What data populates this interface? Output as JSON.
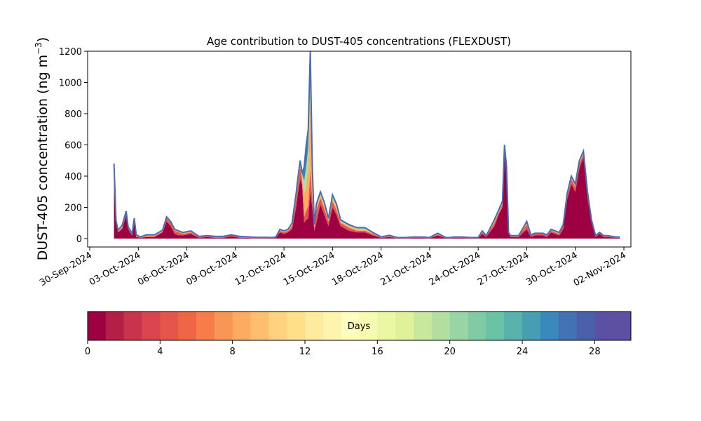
{
  "chart_data": {
    "type": "area",
    "title": "Age contribution to DUST-405 concentrations (FLEXDUST)",
    "ylabel": "DUST-405 concentration (ng m",
    "ylabel_sup": "−3",
    "ylabel_close": ")",
    "xlabel": "",
    "ylim": [
      -50,
      1200
    ],
    "yticks": [
      0,
      200,
      400,
      600,
      800,
      1000,
      1200
    ],
    "xlim": [
      "2024-09-30T00:00",
      "2024-11-02T00:00"
    ],
    "xticks": [
      "30-Sep-2024",
      "03-Oct-2024",
      "06-Oct-2024",
      "09-Oct-2024",
      "12-Oct-2024",
      "15-Oct-2024",
      "18-Oct-2024",
      "21-Oct-2024",
      "24-Oct-2024",
      "27-Oct-2024",
      "30-Oct-2024",
      "02-Nov-2024"
    ],
    "grid": false,
    "stack_palette": "Spectral",
    "x": [
      "2024-10-01T12:00",
      "2024-10-01T15:00",
      "2024-10-01T18:00",
      "2024-10-02T00:00",
      "2024-10-02T06:00",
      "2024-10-02T09:00",
      "2024-10-02T15:00",
      "2024-10-02T18:00",
      "2024-10-02T21:00",
      "2024-10-03T03:00",
      "2024-10-03T12:00",
      "2024-10-04T00:00",
      "2024-10-04T12:00",
      "2024-10-04T18:00",
      "2024-10-05T00:00",
      "2024-10-05T06:00",
      "2024-10-05T12:00",
      "2024-10-05T18:00",
      "2024-10-06T06:00",
      "2024-10-06T18:00",
      "2024-10-07T06:00",
      "2024-10-07T18:00",
      "2024-10-08T06:00",
      "2024-10-08T18:00",
      "2024-10-09T06:00",
      "2024-10-09T18:00",
      "2024-10-10T06:00",
      "2024-10-10T18:00",
      "2024-10-11T06:00",
      "2024-10-11T12:00",
      "2024-10-11T18:00",
      "2024-10-12T00:00",
      "2024-10-12T06:00",
      "2024-10-12T12:00",
      "2024-10-12T18:00",
      "2024-10-12T21:00",
      "2024-10-13T00:00",
      "2024-10-13T03:00",
      "2024-10-13T06:00",
      "2024-10-13T09:00",
      "2024-10-13T12:00",
      "2024-10-13T15:00",
      "2024-10-13T18:00",
      "2024-10-13T21:00",
      "2024-10-14T00:00",
      "2024-10-14T06:00",
      "2024-10-14T12:00",
      "2024-10-14T18:00",
      "2024-10-15T00:00",
      "2024-10-15T06:00",
      "2024-10-15T12:00",
      "2024-10-16T00:00",
      "2024-10-16T12:00",
      "2024-10-17T00:00",
      "2024-10-17T12:00",
      "2024-10-18T00:00",
      "2024-10-18T12:00",
      "2024-10-19T00:00",
      "2024-10-19T12:00",
      "2024-10-20T00:00",
      "2024-10-20T12:00",
      "2024-10-21T00:00",
      "2024-10-21T12:00",
      "2024-10-22T00:00",
      "2024-10-22T06:00",
      "2024-10-22T12:00",
      "2024-10-23T00:00",
      "2024-10-23T12:00",
      "2024-10-24T00:00",
      "2024-10-24T06:00",
      "2024-10-24T12:00",
      "2024-10-25T00:00",
      "2024-10-25T06:00",
      "2024-10-25T12:00",
      "2024-10-25T15:00",
      "2024-10-25T18:00",
      "2024-10-25T21:00",
      "2024-10-26T00:00",
      "2024-10-26T06:00",
      "2024-10-26T12:00",
      "2024-10-27T00:00",
      "2024-10-27T06:00",
      "2024-10-27T12:00",
      "2024-10-28T00:00",
      "2024-10-28T06:00",
      "2024-10-28T12:00",
      "2024-10-29T00:00",
      "2024-10-29T06:00",
      "2024-10-29T12:00",
      "2024-10-29T18:00",
      "2024-10-30T00:00",
      "2024-10-30T06:00",
      "2024-10-30T12:00",
      "2024-10-30T18:00",
      "2024-10-31T00:00",
      "2024-10-31T06:00",
      "2024-10-31T12:00",
      "2024-10-31T18:00",
      "2024-11-01T00:00",
      "2024-11-01T12:00",
      "2024-11-01T18:00"
    ],
    "series": [
      {
        "values": [
          450,
          100,
          40,
          60,
          150,
          60,
          20,
          100,
          10,
          5,
          10,
          10,
          40,
          110,
          80,
          30,
          20,
          20,
          30,
          5,
          10,
          5,
          5,
          15,
          5,
          5,
          2,
          2,
          2,
          5,
          40,
          30,
          40,
          60,
          200,
          300,
          380,
          340,
          100,
          120,
          130,
          300,
          200,
          50,
          100,
          220,
          150,
          80,
          200,
          150,
          80,
          50,
          40,
          40,
          20,
          5,
          10,
          2,
          2,
          5,
          5,
          2,
          20,
          2,
          2,
          5,
          5,
          2,
          2,
          30,
          10,
          80,
          150,
          200,
          560,
          400,
          30,
          10,
          10,
          10,
          60,
          10,
          20,
          20,
          10,
          40,
          20,
          60,
          250,
          350,
          300,
          450,
          520,
          260,
          100,
          10,
          30,
          10,
          10,
          5,
          5
        ]
      },
      {
        "values": [
          10,
          5,
          5,
          10,
          10,
          5,
          5,
          10,
          5,
          2,
          5,
          5,
          5,
          20,
          20,
          20,
          20,
          10,
          10,
          5,
          5,
          5,
          5,
          5,
          5,
          2,
          2,
          2,
          2,
          2,
          10,
          10,
          10,
          20,
          50,
          60,
          80,
          40,
          40,
          60,
          80,
          150,
          60,
          20,
          80,
          40,
          40,
          30,
          40,
          30,
          20,
          20,
          10,
          10,
          10,
          2,
          5,
          2,
          2,
          2,
          2,
          2,
          5,
          2,
          2,
          2,
          2,
          2,
          2,
          10,
          5,
          20,
          10,
          20,
          20,
          40,
          5,
          5,
          5,
          5,
          30,
          10,
          10,
          10,
          10,
          10,
          10,
          20,
          20,
          30,
          30,
          30,
          20,
          20,
          10,
          5,
          5,
          5,
          5,
          2,
          2
        ]
      },
      {
        "values": [
          10,
          5,
          5,
          5,
          5,
          5,
          5,
          10,
          5,
          2,
          5,
          5,
          5,
          5,
          5,
          5,
          5,
          5,
          5,
          2,
          2,
          2,
          2,
          2,
          2,
          2,
          2,
          2,
          1,
          1,
          5,
          5,
          5,
          10,
          20,
          20,
          20,
          20,
          150,
          150,
          250,
          450,
          120,
          10,
          20,
          20,
          20,
          10,
          20,
          20,
          10,
          10,
          10,
          10,
          5,
          2,
          2,
          1,
          1,
          1,
          1,
          1,
          5,
          1,
          1,
          1,
          1,
          1,
          1,
          5,
          2,
          10,
          10,
          10,
          10,
          10,
          2,
          2,
          2,
          2,
          10,
          2,
          2,
          2,
          2,
          5,
          5,
          5,
          10,
          10,
          10,
          10,
          10,
          10,
          5,
          2,
          2,
          2,
          2,
          1,
          1
        ]
      },
      {
        "values": [
          5,
          2,
          2,
          5,
          5,
          2,
          2,
          5,
          2,
          1,
          2,
          2,
          2,
          2,
          2,
          2,
          2,
          2,
          2,
          1,
          1,
          1,
          1,
          1,
          1,
          1,
          1,
          1,
          1,
          1,
          2,
          2,
          2,
          5,
          10,
          10,
          10,
          10,
          80,
          130,
          120,
          150,
          40,
          5,
          10,
          10,
          10,
          5,
          10,
          10,
          5,
          5,
          5,
          5,
          2,
          1,
          2,
          1,
          1,
          1,
          1,
          1,
          2,
          1,
          1,
          1,
          1,
          1,
          1,
          2,
          1,
          5,
          5,
          5,
          5,
          5,
          1,
          1,
          1,
          1,
          5,
          1,
          1,
          1,
          1,
          2,
          2,
          2,
          5,
          5,
          5,
          5,
          5,
          5,
          2,
          1,
          1,
          1,
          1,
          1,
          1
        ]
      },
      {
        "values": [
          5,
          2,
          2,
          5,
          5,
          2,
          2,
          5,
          2,
          1,
          2,
          2,
          2,
          2,
          2,
          2,
          2,
          2,
          2,
          1,
          1,
          1,
          1,
          1,
          1,
          1,
          1,
          1,
          1,
          1,
          2,
          2,
          2,
          5,
          10,
          10,
          10,
          10,
          90,
          140,
          120,
          150,
          40,
          5,
          10,
          10,
          10,
          5,
          10,
          10,
          5,
          5,
          5,
          5,
          2,
          1,
          2,
          1,
          1,
          1,
          1,
          1,
          2,
          1,
          1,
          1,
          1,
          1,
          1,
          2,
          1,
          5,
          5,
          5,
          5,
          5,
          1,
          1,
          1,
          1,
          5,
          1,
          1,
          1,
          1,
          2,
          2,
          2,
          5,
          5,
          5,
          5,
          5,
          5,
          2,
          1,
          1,
          1,
          1,
          1,
          1
        ]
      }
    ],
    "colorbar": {
      "label": "Days",
      "ticks": [
        0,
        4,
        8,
        12,
        16,
        20,
        24,
        28
      ],
      "range": [
        0,
        30
      ],
      "colors": [
        "#9e0142",
        "#b41f48",
        "#c9344d",
        "#d9444e",
        "#e4564a",
        "#ee6645",
        "#f67c4a",
        "#f99555",
        "#fcac61",
        "#fdbf6f",
        "#fed27f",
        "#fee08b",
        "#feeb9d",
        "#fff4ae",
        "#fffebe",
        "#f7fbb2",
        "#ecf7a3",
        "#dff299",
        "#c8e89e",
        "#b2df9f",
        "#99d5a4",
        "#80cba4",
        "#6bc3a6",
        "#58b1ab",
        "#469eb2",
        "#3b88bc",
        "#4272b3",
        "#4b60ab",
        "#5b50a3",
        "#5e4fa2"
      ]
    },
    "colors": {
      "outline": "#4a6bb0",
      "layers": [
        "#9e0142",
        "#e4564a",
        "#fdae61",
        "#abdda4",
        "#3288bd"
      ]
    }
  }
}
